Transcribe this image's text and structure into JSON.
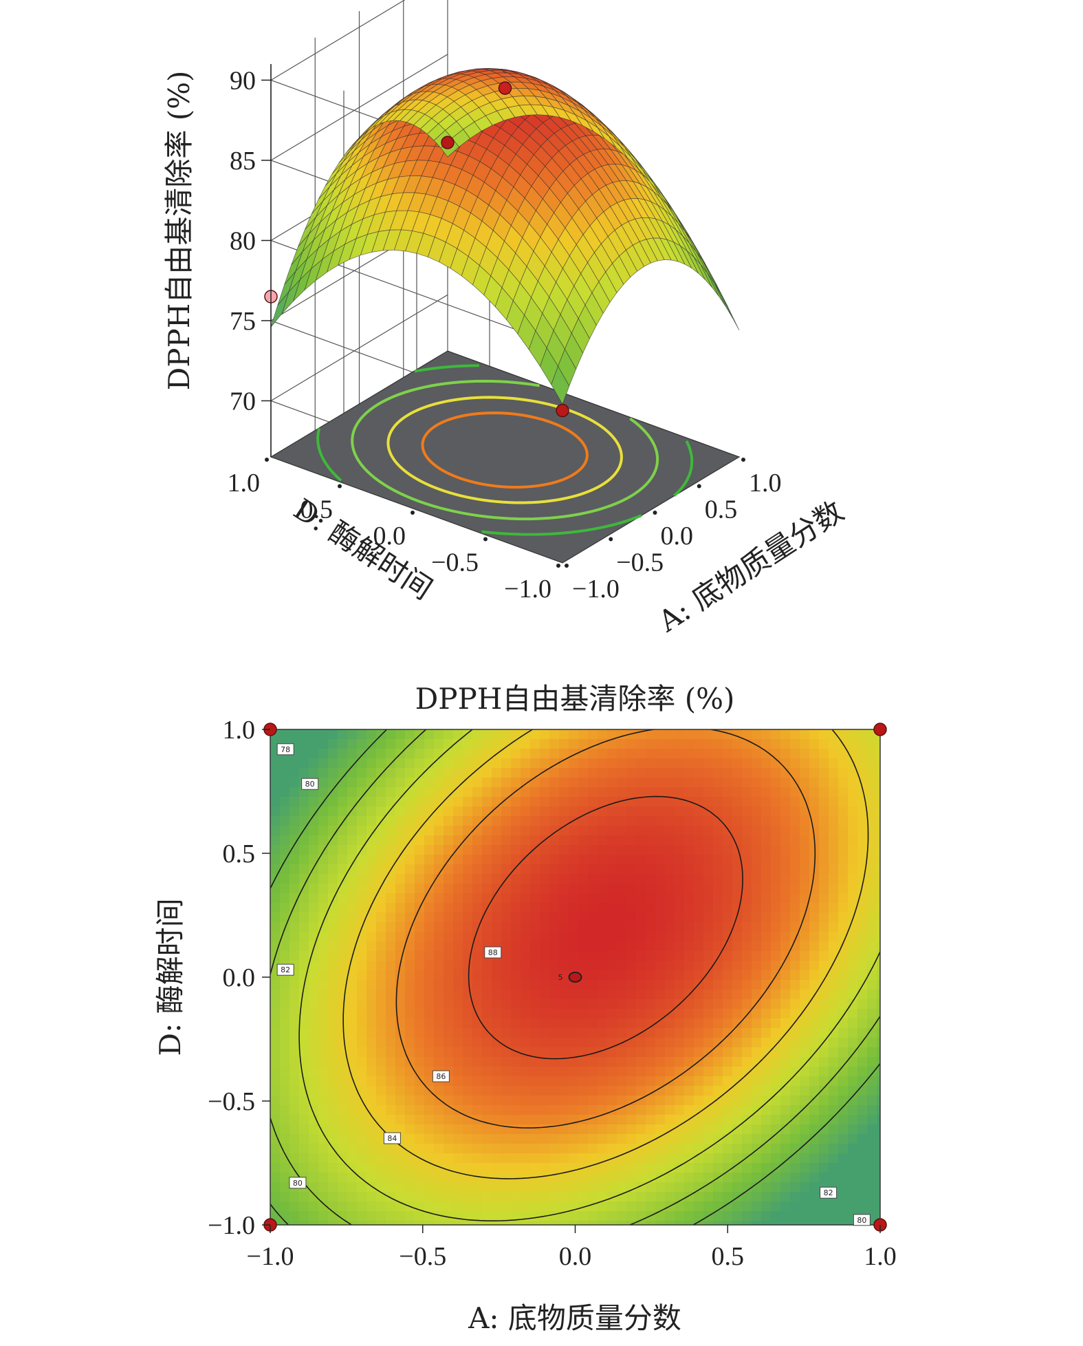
{
  "chart_data": [
    {
      "type": "surface",
      "z_axis": {
        "label": "DPPH自由基清除率 (%)",
        "ticks": [
          "70",
          "75",
          "80",
          "85",
          "90"
        ],
        "range": [
          70,
          90
        ]
      },
      "x_axis": {
        "label": "A: 底物质量分数",
        "ticks": [
          "−1.0",
          "−0.5",
          "0.0",
          "0.5",
          "1.0"
        ],
        "range": [
          -1,
          1
        ]
      },
      "y_axis": {
        "label": "D: 酶解时间",
        "ticks": [
          "−1.0",
          "−0.5",
          "0.0",
          "0.5",
          "1.0"
        ],
        "range": [
          -1,
          1
        ]
      },
      "peak_value": 89.5,
      "design_points": [
        {
          "a": 0,
          "d": 0,
          "z": 89.5,
          "color": "#c82020"
        },
        {
          "a": 1,
          "d": 1,
          "z": 79.5,
          "color": "#b81818"
        },
        {
          "a": -1,
          "d": -1,
          "z": 76.0,
          "color": "#b81818"
        },
        {
          "a": -1,
          "d": 1,
          "z": 76.5,
          "color": "#f4a6b2"
        }
      ],
      "floor_contour_colors": [
        "#f07b1a",
        "#e8e03a",
        "#7fd14a",
        "#3fb83a"
      ]
    },
    {
      "type": "contour",
      "title": "DPPH自由基清除率 (%)",
      "x_axis": {
        "label": "A: 底物质量分数",
        "ticks": [
          "−1.0",
          "−0.5",
          "0.0",
          "0.5",
          "1.0"
        ],
        "range": [
          -1,
          1
        ]
      },
      "y_axis": {
        "label": "D: 酶解时间",
        "ticks": [
          "−1.0",
          "−0.5",
          "0.0",
          "0.5",
          "1.0"
        ],
        "range": [
          -1,
          1
        ]
      },
      "contour_levels": [
        78,
        80,
        82,
        84,
        86,
        88
      ],
      "contour_labels": [
        {
          "text": "78",
          "a": -0.95,
          "d": 0.92
        },
        {
          "text": "80",
          "a": -0.87,
          "d": 0.78
        },
        {
          "text": "82",
          "a": -0.95,
          "d": 0.03
        },
        {
          "text": "86",
          "a": -0.44,
          "d": -0.4
        },
        {
          "text": "84",
          "a": -0.6,
          "d": -0.65
        },
        {
          "text": "88",
          "a": -0.27,
          "d": 0.1
        },
        {
          "text": "80",
          "a": -0.91,
          "d": -0.83
        },
        {
          "text": "82",
          "a": 0.83,
          "d": -0.87
        },
        {
          "text": "80",
          "a": 0.94,
          "d": -0.98
        }
      ],
      "center_point": {
        "a": 0,
        "d": 0,
        "label": "5"
      },
      "corner_points": [
        {
          "a": -1,
          "d": 1
        },
        {
          "a": 1,
          "d": 1
        },
        {
          "a": -1,
          "d": -1
        },
        {
          "a": 1,
          "d": -1
        }
      ]
    }
  ]
}
